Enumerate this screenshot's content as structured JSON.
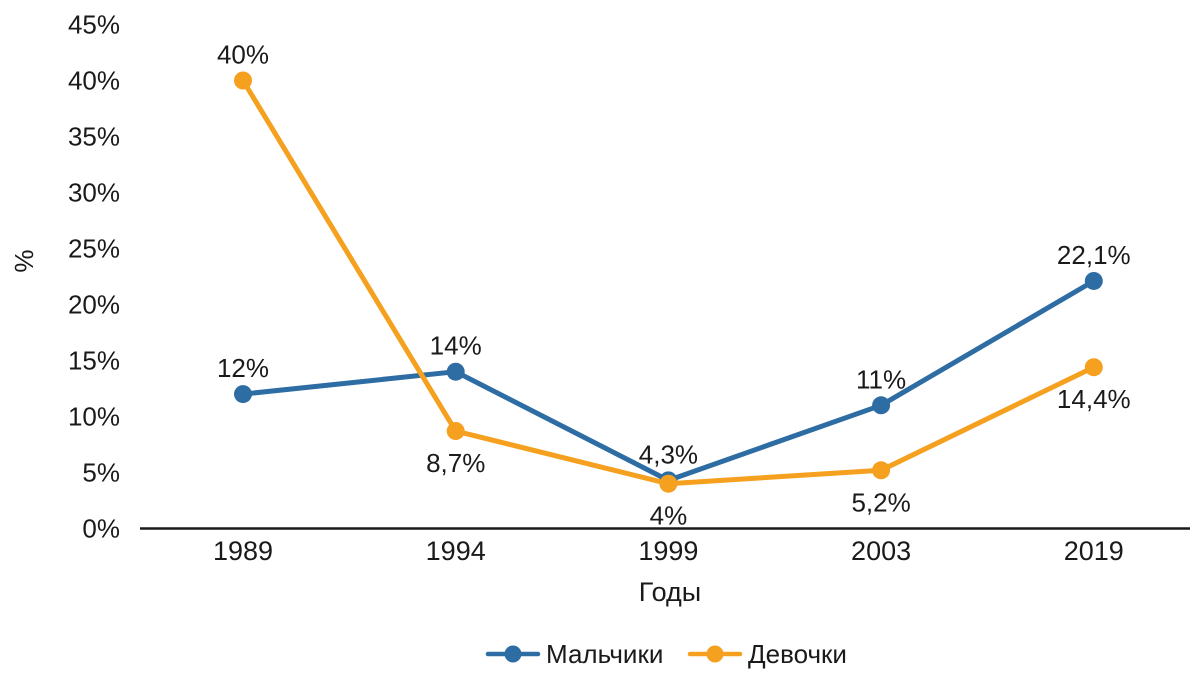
{
  "chart_data": {
    "type": "line",
    "title": "",
    "categories": [
      "1989",
      "1994",
      "1999",
      "2003",
      "2019"
    ],
    "series": [
      {
        "name": "Мальчики",
        "color": "#2E6DA4",
        "values": [
          12,
          14,
          4.3,
          11,
          22.1
        ],
        "point_labels": [
          "12%",
          "14%",
          "4,3%",
          "11%",
          "22,1%"
        ]
      },
      {
        "name": "Девочки",
        "color": "#F5A01E",
        "values": [
          40,
          8.7,
          4,
          5.2,
          14.4
        ],
        "point_labels": [
          "40%",
          "8,7%",
          "4%",
          "5,2%",
          "14,4%"
        ]
      }
    ],
    "xlabel": "Годы",
    "ylabel": "%",
    "ylim": [
      0,
      45
    ],
    "y_ticks": [
      0,
      5,
      10,
      15,
      20,
      25,
      30,
      35,
      40,
      45
    ],
    "y_tick_labels": [
      "0%",
      "5%",
      "10%",
      "15%",
      "20%",
      "25%",
      "30%",
      "35%",
      "40%",
      "45%"
    ],
    "grid": false,
    "legend_position": "bottom",
    "axis_color": "#1a1a1a",
    "text_color": "#1a1a1a",
    "background": "#ffffff"
  }
}
